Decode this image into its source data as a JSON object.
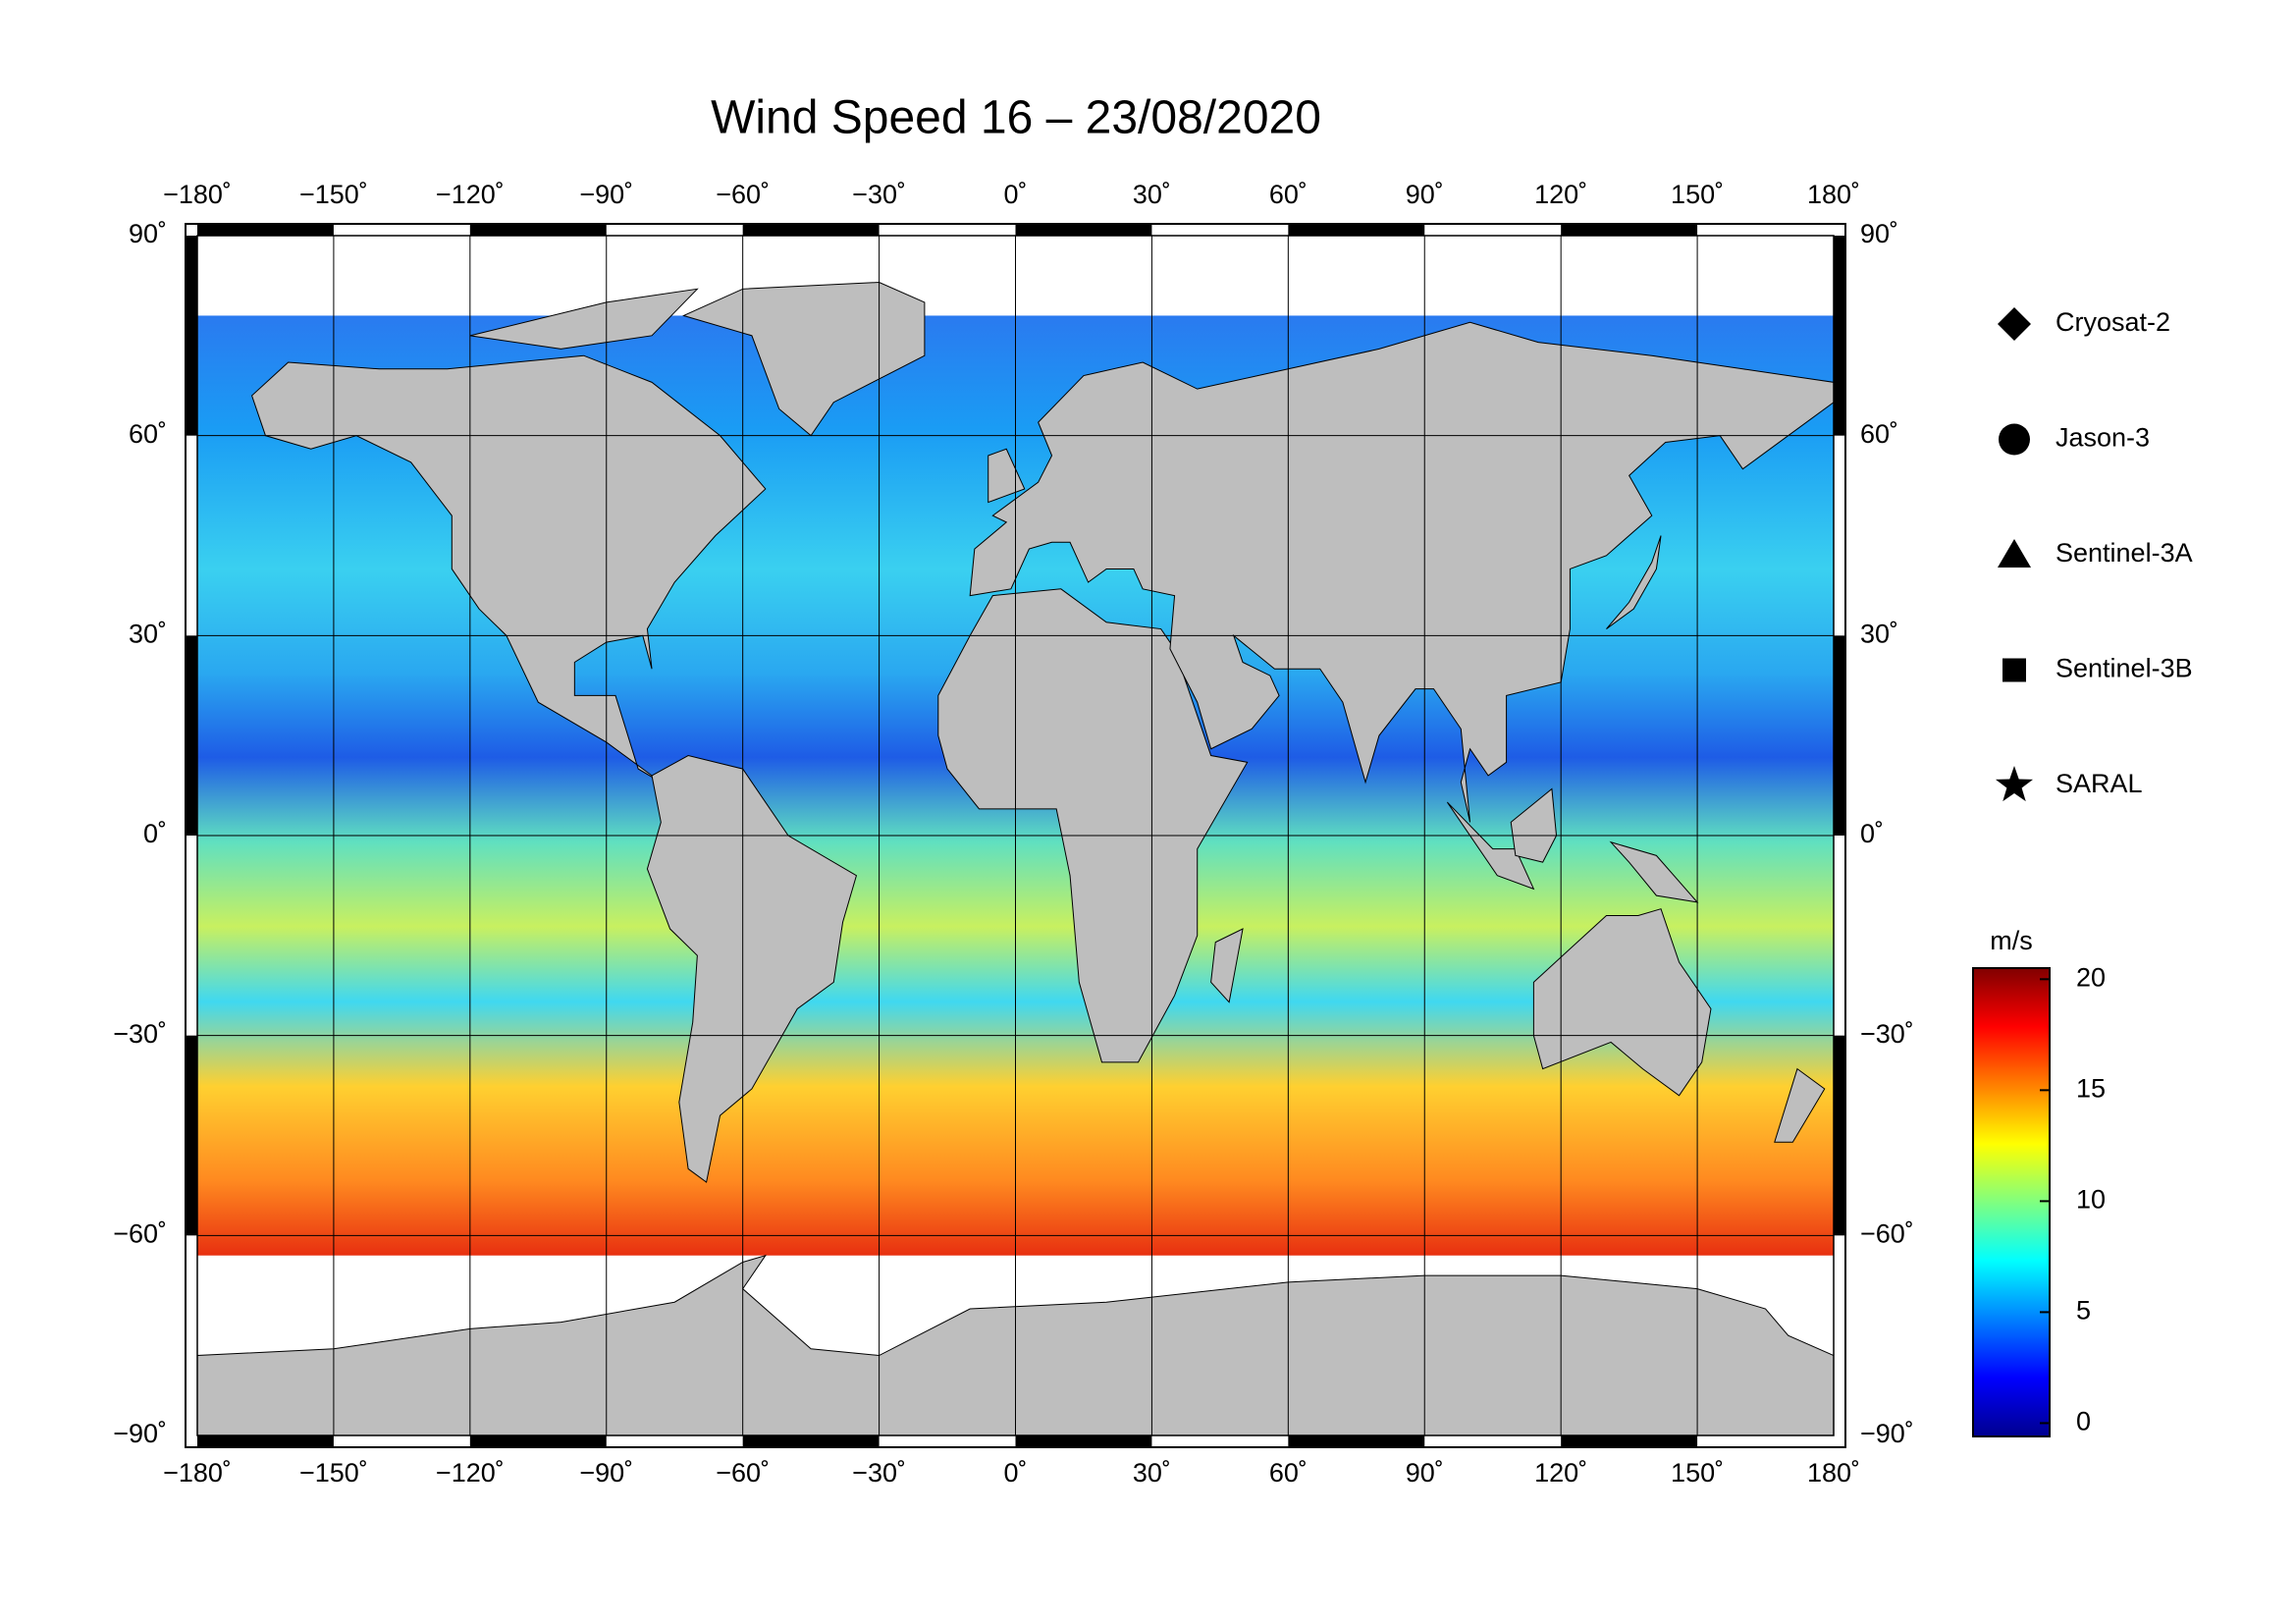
{
  "chart_data": {
    "type": "map",
    "title": "Wind Speed 16 – 23/08/2020",
    "xlim": [
      -180,
      180
    ],
    "xticks": [
      {
        "value": -180,
        "label": "−180˚"
      },
      {
        "value": -150,
        "label": "−150˚"
      },
      {
        "value": -120,
        "label": "−120˚"
      },
      {
        "value": -90,
        "label": "−90˚"
      },
      {
        "value": -60,
        "label": "−60˚"
      },
      {
        "value": -30,
        "label": "−30˚"
      },
      {
        "value": 0,
        "label": "0˚"
      },
      {
        "value": 30,
        "label": "30˚"
      },
      {
        "value": 60,
        "label": "60˚"
      },
      {
        "value": 90,
        "label": "90˚"
      },
      {
        "value": 120,
        "label": "120˚"
      },
      {
        "value": 150,
        "label": "150˚"
      },
      {
        "value": 180,
        "label": "180˚"
      }
    ],
    "ylim": [
      -90,
      90
    ],
    "yticks": [
      {
        "value": 90,
        "label": "90˚"
      },
      {
        "value": 60,
        "label": "60˚"
      },
      {
        "value": 30,
        "label": "30˚"
      },
      {
        "value": 0,
        "label": "0˚"
      },
      {
        "value": -30,
        "label": "−30˚"
      },
      {
        "value": -60,
        "label": "−60˚"
      },
      {
        "value": -90,
        "label": "−90˚"
      }
    ],
    "legend": [
      "Cryosat-2",
      "Jason-3",
      "Sentinel-3A",
      "Sentinel-3B",
      "SARAL"
    ],
    "colorbar": {
      "label": "m/s",
      "lim": [
        -0.6,
        20.5
      ],
      "ticks": [
        0,
        5,
        10,
        15,
        20
      ]
    }
  }
}
